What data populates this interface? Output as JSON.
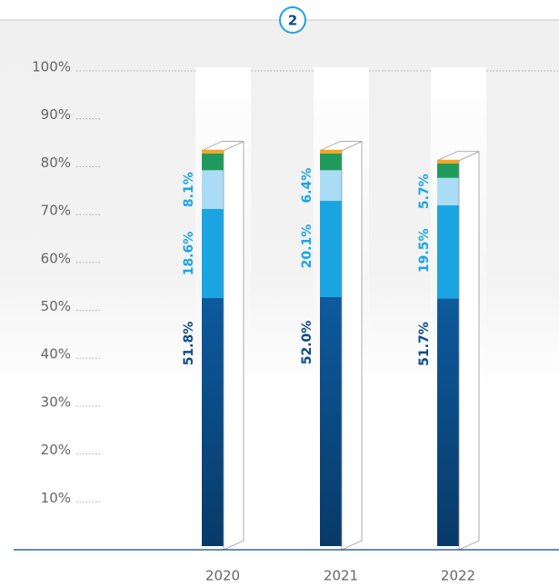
{
  "badge": "2",
  "chart_data": {
    "type": "stacked-bar-3d",
    "categories": [
      "2020",
      "2021",
      "2022"
    ],
    "ylim": [
      0,
      100
    ],
    "yticks": [
      {
        "value": 10,
        "label": "10%"
      },
      {
        "value": 20,
        "label": "20%"
      },
      {
        "value": 30,
        "label": "30%"
      },
      {
        "value": 40,
        "label": "40%"
      },
      {
        "value": 50,
        "label": "50%"
      },
      {
        "value": 60,
        "label": "60%"
      },
      {
        "value": 70,
        "label": "70%"
      },
      {
        "value": 80,
        "label": "80%"
      },
      {
        "value": 90,
        "label": "90%"
      },
      {
        "value": 100,
        "label": "100%"
      }
    ],
    "series": [
      {
        "color": "#0b4f8e",
        "label_color": "#0d4a85",
        "values": [
          51.8,
          52.0,
          51.7
        ],
        "value_labels": [
          "51.8%",
          "52.0%",
          "51.7%"
        ]
      },
      {
        "color": "#1ba4e2",
        "label_color": "#1ba4e2",
        "values": [
          18.6,
          20.1,
          19.5
        ],
        "value_labels": [
          "18.6%",
          "20.1%",
          "19.5%"
        ]
      },
      {
        "color": "#aadcf5",
        "label_color": "#1ba4e2",
        "values": [
          8.1,
          6.4,
          5.7
        ],
        "value_labels": [
          "8.1%",
          "6.4%",
          "5.7%"
        ]
      },
      {
        "color": "#1f9a5c",
        "values": [
          3.5,
          3.5,
          3.0
        ]
      },
      {
        "color": "#f5a623",
        "values": [
          0.6,
          0.6,
          0.6
        ]
      }
    ]
  }
}
